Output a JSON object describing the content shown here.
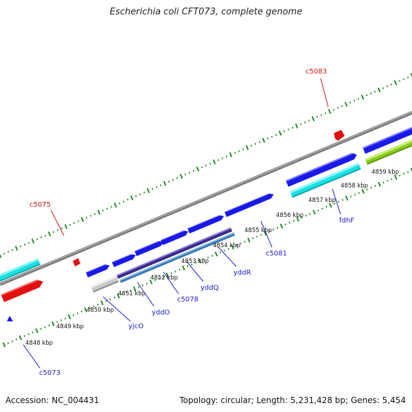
{
  "title": "Escherichia coli CFT073, complete genome",
  "footer": {
    "accession": "Accession: NC_004431",
    "summary": "Topology: circular; Length: 5,231,428 bp; Genes: 5,454"
  },
  "colors": {
    "blue_gene": "#1a1ae6",
    "cyan_gene": "#19e0e6",
    "red_gene": "#e01010",
    "purple_gene": "#3a2a8a",
    "steel_gene": "#3a78b0",
    "grey_gene": "#c8c8c8",
    "green_gene": "#88cc22",
    "backbone": "#8a8a8a",
    "tick": "#228822",
    "label_blue": "#1a1ac8",
    "label_red": "#cc1111"
  },
  "scale_labels": [
    "4848 kbp",
    "4849 kbp",
    "4850 kbp",
    "4851 kbp",
    "4852 kbp",
    "4853 kbp",
    "4854 kbp",
    "4855 kbp",
    "4856 kbp",
    "4857 kbp",
    "4858 kbp",
    "4859 kbp"
  ],
  "gene_labels": [
    {
      "name": "c5073",
      "color": "label_blue"
    },
    {
      "name": "yjcO",
      "color": "label_blue"
    },
    {
      "name": "yddO",
      "color": "label_blue"
    },
    {
      "name": "c5078",
      "color": "label_blue"
    },
    {
      "name": "yddQ",
      "color": "label_blue"
    },
    {
      "name": "yddR",
      "color": "label_blue"
    },
    {
      "name": "c5081",
      "color": "label_blue"
    },
    {
      "name": "fdhF",
      "color": "label_blue"
    },
    {
      "name": "c5075",
      "color": "label_red"
    },
    {
      "name": "c5083",
      "color": "label_red"
    }
  ]
}
